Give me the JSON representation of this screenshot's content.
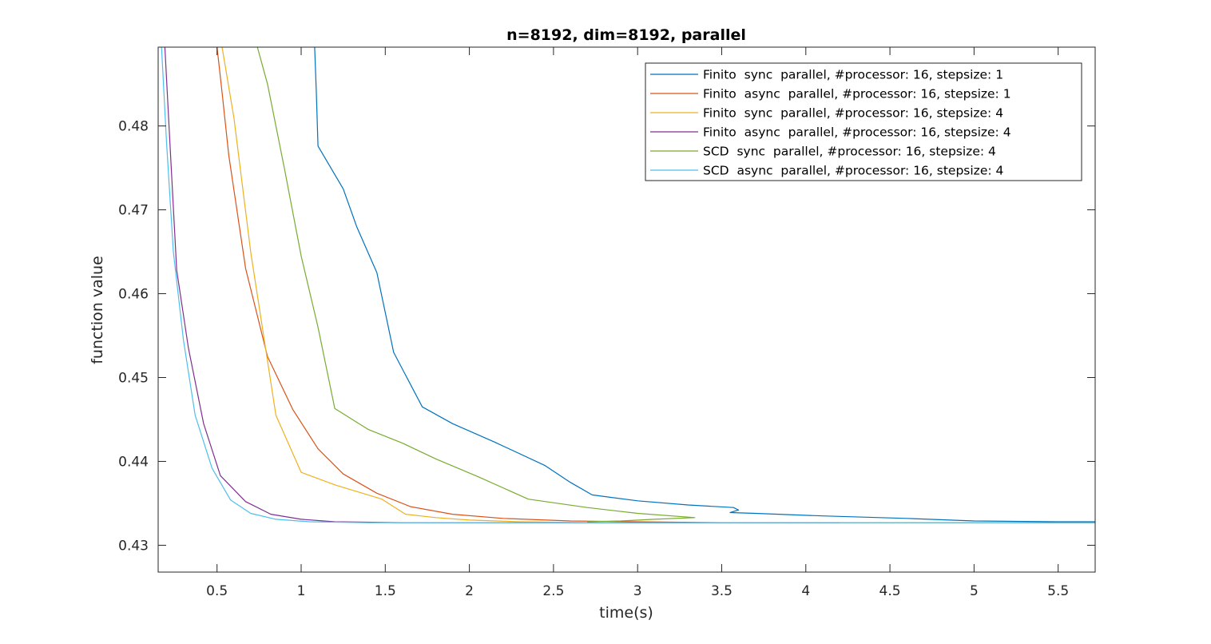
{
  "chart_data": {
    "type": "line",
    "title": "n=8192, dim=8192, parallel",
    "xlabel": "time(s)",
    "ylabel": "function value",
    "xlim": [
      0.15,
      5.72
    ],
    "ylim": [
      0.4268,
      0.4894
    ],
    "xticks": [
      0.5,
      1,
      1.5,
      2,
      2.5,
      3,
      3.5,
      4,
      4.5,
      5,
      5.5
    ],
    "xtick_labels": [
      "0.5",
      "1",
      "1.5",
      "2",
      "2.5",
      "3",
      "3.5",
      "4",
      "4.5",
      "5",
      "5.5"
    ],
    "yticks": [
      0.43,
      0.44,
      0.45,
      0.46,
      0.47,
      0.48
    ],
    "ytick_labels": [
      "0.43",
      "0.44",
      "0.45",
      "0.46",
      "0.47",
      "0.48"
    ],
    "grid": false,
    "legend_position": "top-right",
    "series": [
      {
        "name": "Finito  sync  parallel, #processor: 16, stepsize: 1",
        "color": "#0072BD",
        "x": [
          1.08,
          1.09,
          1.1,
          1.25,
          1.33,
          1.45,
          1.55,
          1.72,
          1.9,
          2.15,
          2.45,
          2.6,
          2.73,
          3.0,
          3.3,
          3.57,
          3.6,
          3.55,
          3.7,
          4.1,
          4.6,
          5.0,
          5.5,
          5.72
        ],
        "y": [
          0.4894,
          0.484,
          0.4776,
          0.4725,
          0.468,
          0.4625,
          0.453,
          0.4465,
          0.4445,
          0.4423,
          0.4395,
          0.4375,
          0.436,
          0.4353,
          0.4348,
          0.4345,
          0.4342,
          0.4339,
          0.4338,
          0.4335,
          0.4332,
          0.4329,
          0.4328,
          0.4328
        ]
      },
      {
        "name": "Finito  async  parallel, #processor: 16, stepsize: 1",
        "color": "#D95319",
        "x": [
          0.5,
          0.53,
          0.57,
          0.67,
          0.8,
          0.95,
          1.1,
          1.25,
          1.45,
          1.65,
          1.9,
          2.2,
          2.6,
          3.0,
          3.5,
          4.0,
          4.5,
          5.0,
          5.5,
          5.72
        ],
        "y": [
          0.4894,
          0.484,
          0.4765,
          0.463,
          0.4525,
          0.4462,
          0.4415,
          0.4385,
          0.4362,
          0.4346,
          0.4337,
          0.4332,
          0.4329,
          0.4328,
          0.4327,
          0.4327,
          0.4327,
          0.4327,
          0.4327,
          0.4327
        ]
      },
      {
        "name": "Finito  sync  parallel, #processor: 16, stepsize: 4",
        "color": "#EDB120",
        "x": [
          0.53,
          0.6,
          0.7,
          0.85,
          1.0,
          1.2,
          1.48,
          1.62,
          1.8,
          2.0,
          2.3,
          2.7,
          3.2,
          3.7,
          4.2,
          4.8,
          5.3,
          5.72
        ],
        "y": [
          0.4894,
          0.481,
          0.465,
          0.4455,
          0.4387,
          0.4372,
          0.4355,
          0.4337,
          0.4333,
          0.433,
          0.4328,
          0.4327,
          0.4327,
          0.4327,
          0.4327,
          0.4327,
          0.4327,
          0.4327
        ]
      },
      {
        "name": "Finito  async  parallel, #processor: 16, stepsize: 4",
        "color": "#7E2F8E",
        "x": [
          0.19,
          0.22,
          0.26,
          0.33,
          0.42,
          0.52,
          0.67,
          0.82,
          1.0,
          1.2,
          1.6,
          2.2,
          3.0,
          3.7,
          4.2
        ],
        "y": [
          0.4894,
          0.478,
          0.4628,
          0.4535,
          0.4445,
          0.4383,
          0.4352,
          0.4337,
          0.4331,
          0.4328,
          0.4327,
          0.4327,
          0.4327,
          0.4327,
          0.4327
        ]
      },
      {
        "name": "SCD  sync  parallel, #processor: 16, stepsize: 4",
        "color": "#77AC30",
        "x": [
          0.74,
          0.8,
          0.9,
          1.0,
          1.1,
          1.2,
          1.4,
          1.6,
          1.8,
          2.05,
          2.35,
          2.7,
          3.0,
          3.34,
          3.1,
          2.9,
          2.7
        ],
        "y": [
          0.4894,
          0.485,
          0.475,
          0.4645,
          0.456,
          0.4463,
          0.4438,
          0.4422,
          0.4403,
          0.4382,
          0.4355,
          0.4345,
          0.4338,
          0.4333,
          0.4331,
          0.4329,
          0.4328
        ]
      },
      {
        "name": "SCD  async  parallel, #processor: 16, stepsize: 4",
        "color": "#4DBEEE",
        "x": [
          0.17,
          0.2,
          0.24,
          0.3,
          0.37,
          0.47,
          0.58,
          0.7,
          0.85,
          1.05,
          1.4,
          2.0,
          3.0,
          4.0,
          5.0,
          5.72
        ],
        "y": [
          0.4894,
          0.478,
          0.465,
          0.4545,
          0.4455,
          0.4392,
          0.4354,
          0.4338,
          0.4331,
          0.4328,
          0.4327,
          0.4327,
          0.4327,
          0.4327,
          0.4327,
          0.4327
        ]
      }
    ]
  }
}
